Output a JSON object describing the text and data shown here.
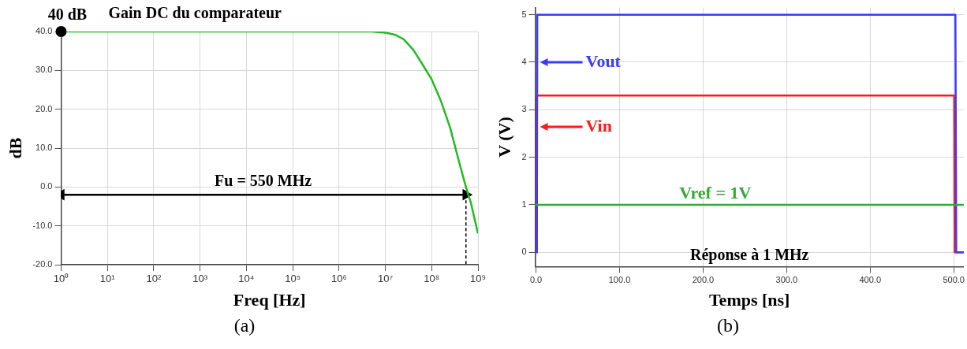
{
  "chart_data": [
    {
      "type": "line",
      "title": "Gain DC du comparateur",
      "xlabel": "Freq [Hz]",
      "ylabel": "dB",
      "log": "x",
      "grid": true,
      "xlim": [
        1,
        1000000000
      ],
      "xticks": [
        {
          "value": 1,
          "label": "10⁰"
        },
        {
          "value": 10,
          "label": "10¹"
        },
        {
          "value": 100,
          "label": "10²"
        },
        {
          "value": 1000,
          "label": "10³"
        },
        {
          "value": 10000,
          "label": "10⁴"
        },
        {
          "value": 100000,
          "label": "10⁵"
        },
        {
          "value": 1000000,
          "label": "10⁶"
        },
        {
          "value": 10000000,
          "label": "10⁷"
        },
        {
          "value": 100000000,
          "label": "10⁸"
        },
        {
          "value": 1000000000,
          "label": "10⁹"
        }
      ],
      "ylim": [
        -20,
        40
      ],
      "yticks": [
        {
          "value": -20,
          "label": "-20.0"
        },
        {
          "value": -10,
          "label": "-10.0"
        },
        {
          "value": 0,
          "label": "0.0"
        },
        {
          "value": 10,
          "label": "10.0"
        },
        {
          "value": 20,
          "label": "20.0"
        },
        {
          "value": 30,
          "label": "30.0"
        },
        {
          "value": 40,
          "label": "40.0"
        }
      ],
      "series": [
        {
          "color": "#22bb22",
          "x": [
            1,
            1000000,
            5000000,
            10000000,
            16000000,
            25000000,
            40000000,
            60000000,
            100000000,
            160000000,
            250000000,
            400000000,
            550000000,
            700000000,
            1000000000
          ],
          "values": [
            40,
            40,
            40,
            39.7,
            39.2,
            38,
            35.3,
            32,
            27.7,
            22,
            15.3,
            6,
            0,
            -4,
            -12
          ]
        },
        {
          "color": "#000000",
          "x": [
            1,
            550000000
          ],
          "values": [
            -2,
            -2
          ],
          "marker": "triangle"
        },
        {
          "color": "#000000",
          "x": [
            550000000,
            550000000
          ],
          "values": [
            -2,
            -20
          ],
          "line_style": "dashed"
        }
      ],
      "annotations": [
        {
          "text": "40 dB",
          "x": 1,
          "y": 40
        },
        {
          "text": "Fu = 550 MHz",
          "x": 23000,
          "y": -2
        },
        "(a)"
      ]
    },
    {
      "type": "line",
      "title": "Réponse à 1 MHz",
      "xlabel": "Temps [ns]",
      "ylabel": "V (V)",
      "grid": true,
      "xlim": [
        -1,
        512
      ],
      "xticks": [
        {
          "value": 0,
          "label": "0.0"
        },
        {
          "value": 100,
          "label": "100.0"
        },
        {
          "value": 200,
          "label": "200.0"
        },
        {
          "value": 300,
          "label": "300.0"
        },
        {
          "value": 400,
          "label": "400.0"
        },
        {
          "value": 500,
          "label": "500.0"
        }
      ],
      "ylim": [
        -0.3,
        5.15
      ],
      "yticks": [
        0,
        1,
        2,
        3,
        4,
        5
      ],
      "legend": "left",
      "series": [
        {
          "name": "Vout",
          "color": "#3b3bff",
          "x": [
            0,
            1,
            1.5,
            502,
            503,
            512
          ],
          "values": [
            0,
            0,
            5,
            5,
            0,
            0
          ]
        },
        {
          "name": "Vin",
          "color": "#ff1a1a",
          "x": [
            0,
            0.5,
            1,
            500.5,
            501,
            512
          ],
          "values": [
            0,
            0,
            3.3,
            3.3,
            0,
            0
          ]
        }
      ],
      "ref_lines": [
        {
          "axis": "y",
          "value": 1,
          "label": "Vref = 1V",
          "color": "#33aa33"
        }
      ],
      "annotations": [
        "(b)"
      ]
    }
  ]
}
